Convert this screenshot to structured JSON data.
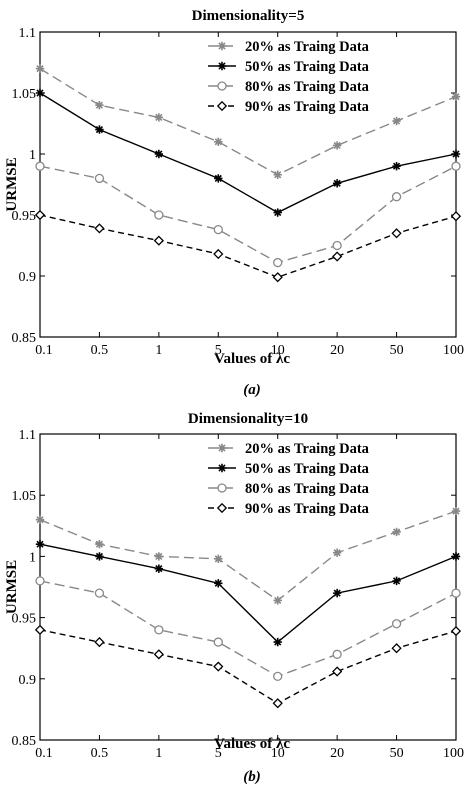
{
  "chart_data": [
    {
      "type": "line",
      "title": "Dimensionality=5",
      "xlabel": "Values of λc",
      "ylabel": "URMSE",
      "caption": "(a)",
      "categories": [
        "0.1",
        "0.5",
        "1",
        "5",
        "10",
        "20",
        "50",
        "100"
      ],
      "ylim": [
        0.85,
        1.1
      ],
      "yticks": [
        "0.85",
        "0.9",
        "0.95",
        "1",
        "1.05",
        "1.1"
      ],
      "legend_position": "top-right",
      "grid": false,
      "series": [
        {
          "name": "20% as Traing Data",
          "values": [
            1.07,
            1.04,
            1.03,
            1.01,
            0.983,
            1.007,
            1.027,
            1.047
          ],
          "color": "#888888",
          "marker": "star",
          "dash": "long-dash"
        },
        {
          "name": "50% as Traing Data",
          "values": [
            1.05,
            1.02,
            1.0,
            0.98,
            0.952,
            0.976,
            0.99,
            1.0
          ],
          "color": "#000000",
          "marker": "star",
          "dash": "solid"
        },
        {
          "name": "80% as Traing Data",
          "values": [
            0.99,
            0.98,
            0.95,
            0.938,
            0.911,
            0.925,
            0.965,
            0.99
          ],
          "color": "#888888",
          "marker": "circle",
          "dash": "long-dash"
        },
        {
          "name": "90% as Traing Data",
          "values": [
            0.95,
            0.939,
            0.929,
            0.918,
            0.899,
            0.916,
            0.935,
            0.949
          ],
          "color": "#000000",
          "marker": "diamond",
          "dash": "dash"
        }
      ]
    },
    {
      "type": "line",
      "title": "Dimensionality=10",
      "xlabel": "Values of λc",
      "ylabel": "URMSE",
      "caption": "(b)",
      "categories": [
        "0.1",
        "0.5",
        "1",
        "5",
        "10",
        "20",
        "50",
        "100"
      ],
      "ylim": [
        0.85,
        1.1
      ],
      "yticks": [
        "0.85",
        "0.9",
        "0.95",
        "1",
        "1.05",
        "1.1"
      ],
      "legend_position": "top-right",
      "grid": false,
      "series": [
        {
          "name": "20% as Traing Data",
          "values": [
            1.03,
            1.01,
            1.0,
            0.998,
            0.964,
            1.003,
            1.02,
            1.037
          ],
          "color": "#888888",
          "marker": "star",
          "dash": "long-dash"
        },
        {
          "name": "50% as Traing Data",
          "values": [
            1.01,
            1.0,
            0.99,
            0.978,
            0.93,
            0.97,
            0.98,
            1.0
          ],
          "color": "#000000",
          "marker": "star",
          "dash": "solid"
        },
        {
          "name": "80% as Traing Data",
          "values": [
            0.98,
            0.97,
            0.94,
            0.93,
            0.902,
            0.92,
            0.945,
            0.97
          ],
          "color": "#888888",
          "marker": "circle",
          "dash": "long-dash"
        },
        {
          "name": "90% as Traing Data",
          "values": [
            0.94,
            0.93,
            0.92,
            0.91,
            0.88,
            0.906,
            0.925,
            0.939
          ],
          "color": "#000000",
          "marker": "diamond",
          "dash": "dash"
        }
      ]
    }
  ]
}
